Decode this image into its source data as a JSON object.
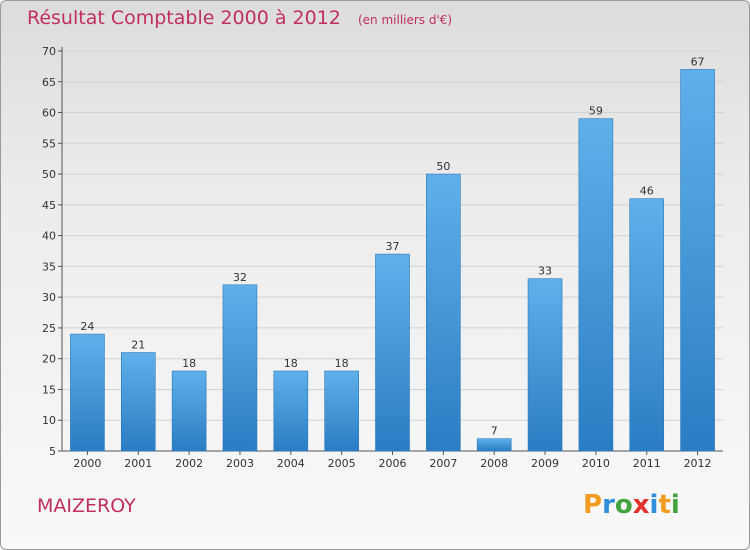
{
  "title": "Résultat Comptable 2000 à 2012",
  "unit": "(en milliers d'€)",
  "commune": "MAIZEROY",
  "logo": {
    "letters": [
      "P",
      "r",
      "o",
      "x",
      "i",
      "t",
      "i"
    ],
    "colors": [
      "#f39c1f",
      "#2f8fd8",
      "#43a33f",
      "#e2322e",
      "#2f8fd8",
      "#f39c1f",
      "#43a33f"
    ]
  },
  "colors": {
    "bar_top": "#5fb0ea",
    "bar_bottom": "#2a7dc3",
    "title": "#c0305c"
  },
  "chart_data": {
    "type": "bar",
    "title": "Résultat Comptable 2000 à 2012",
    "ylabel": "(en milliers d'€)",
    "xlabel": "",
    "categories": [
      "2000",
      "2001",
      "2002",
      "2003",
      "2004",
      "2005",
      "2006",
      "2007",
      "2008",
      "2009",
      "2010",
      "2011",
      "2012"
    ],
    "values": [
      24,
      21,
      18,
      32,
      18,
      18,
      37,
      50,
      7,
      33,
      59,
      46,
      67
    ],
    "ylim": [
      5,
      70
    ],
    "yticks": [
      5,
      10,
      15,
      20,
      25,
      30,
      35,
      40,
      45,
      50,
      55,
      60,
      65,
      70
    ],
    "grid": true
  }
}
